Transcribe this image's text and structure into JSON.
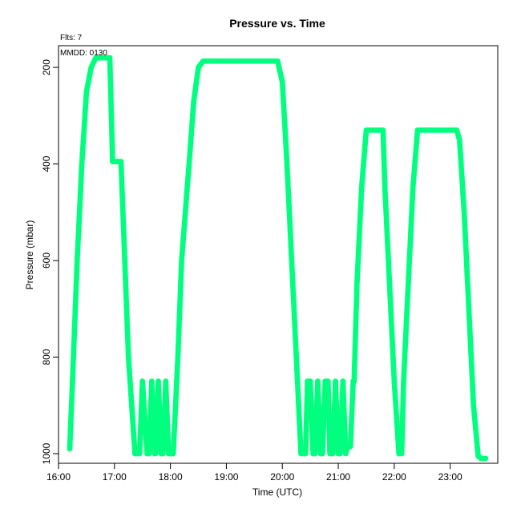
{
  "chart_data": {
    "type": "scatter",
    "title": "Pressure  vs. Time",
    "annotations": {
      "flights": "Flts: 7",
      "date": "MMDD: 0130"
    },
    "xlabel": "Time (UTC)",
    "ylabel": "Pressure (mbar)",
    "xlim": [
      "16:00",
      "23:51"
    ],
    "ylim": [
      1020,
      155
    ],
    "y_reversed": true,
    "grid": false,
    "x_ticks": [
      "16:00",
      "17:00",
      "18:00",
      "19:00",
      "20:00",
      "21:00",
      "22:00",
      "23:00"
    ],
    "y_ticks": [
      "200",
      "400",
      "600",
      "800",
      "1000"
    ],
    "series": [
      {
        "color": "#00ff7f",
        "x": [
          "16:12",
          "16:15",
          "16:20",
          "16:25",
          "16:30",
          "16:35",
          "16:40",
          "16:46",
          "16:55",
          "16:58",
          "17:07",
          "17:15",
          "17:22",
          "17:27",
          "17:30",
          "17:35",
          "17:37",
          "17:40",
          "17:43",
          "17:44",
          "17:47",
          "17:50",
          "17:52",
          "17:55",
          "17:58",
          "18:00",
          "18:03",
          "18:08",
          "18:12",
          "18:20",
          "18:25",
          "18:30",
          "18:35",
          "18:40",
          "18:45",
          "19:55",
          "20:00",
          "20:05",
          "20:10",
          "20:15",
          "20:20",
          "20:25",
          "20:27",
          "20:30",
          "20:33",
          "20:35",
          "20:38",
          "20:41",
          "20:43",
          "20:46",
          "20:49",
          "20:51",
          "20:54",
          "20:57",
          "21:00",
          "21:02",
          "21:05",
          "21:08",
          "21:10",
          "21:13",
          "21:16",
          "21:17",
          "21:20",
          "21:25",
          "21:30",
          "21:35",
          "21:40",
          "21:48",
          "21:50",
          "21:55",
          "22:00",
          "22:05",
          "22:08",
          "22:10",
          "22:15",
          "22:20",
          "22:25",
          "22:30",
          "22:38",
          "23:07",
          "23:10",
          "23:15",
          "23:20",
          "23:25",
          "23:30",
          "23:33",
          "23:38"
        ],
        "y": [
          990,
          850,
          600,
          400,
          250,
          200,
          180,
          180,
          180,
          395,
          395,
          800,
          1000,
          1000,
          850,
          1000,
          1000,
          850,
          1000,
          1000,
          850,
          1000,
          1000,
          850,
          1000,
          1000,
          1000,
          800,
          600,
          400,
          270,
          200,
          187,
          187,
          187,
          187,
          230,
          400,
          600,
          800,
          1000,
          1000,
          850,
          850,
          1000,
          1000,
          850,
          1000,
          1000,
          850,
          850,
          1000,
          1000,
          850,
          1000,
          1000,
          850,
          1000,
          985,
          985,
          850,
          850,
          650,
          450,
          330,
          330,
          330,
          330,
          450,
          650,
          850,
          1000,
          1000,
          850,
          650,
          450,
          330,
          330,
          330,
          330,
          350,
          500,
          700,
          900,
          1005,
          1010,
          1010
        ]
      }
    ]
  }
}
